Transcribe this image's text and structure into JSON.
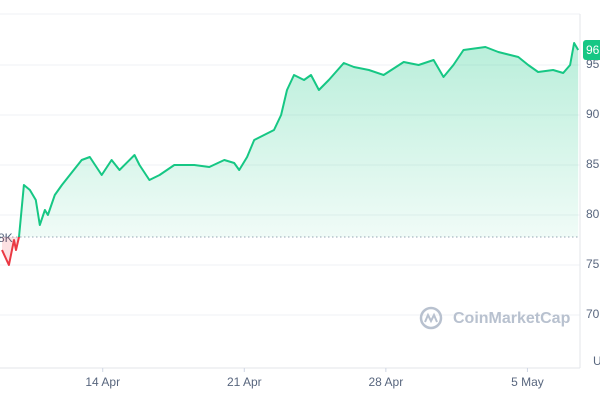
{
  "chart_data": {
    "type": "line",
    "x": [
      99.02,
      99.36,
      99.61,
      99.71,
      99.86,
      100.1,
      100.4,
      100.69,
      100.89,
      101.14,
      101.29,
      101.63,
      101.98,
      102.37,
      102.96,
      103.36,
      103.95,
      104.44,
      104.83,
      105.57,
      105.82,
      106.31,
      106.81,
      107.54,
      108.53,
      109.27,
      110.01,
      110.5,
      110.75,
      111.14,
      111.49,
      111.98,
      112.47,
      112.82,
      113.11,
      113.46,
      113.95,
      114.3,
      114.69,
      115.18,
      115.92,
      116.42,
      117.16,
      117.89,
      118.88,
      119.62,
      120.36,
      120.85,
      121.34,
      121.84,
      122.92,
      123.56,
      124.55,
      125.04,
      125.53,
      126.27,
      126.77,
      127.11,
      127.31,
      127.51
    ],
    "series": [
      {
        "color": "#16c784",
        "values": [
          76.5,
          75.0,
          77.5,
          76.5,
          77.8,
          83.0,
          82.5,
          81.5,
          79.0,
          80.5,
          80.0,
          82.0,
          83.0,
          84.0,
          85.5,
          85.8,
          84.0,
          85.5,
          84.5,
          86.0,
          85.0,
          83.5,
          84.0,
          85.0,
          85.0,
          84.8,
          85.5,
          85.2,
          84.5,
          85.8,
          87.5,
          88.0,
          88.5,
          90.0,
          92.5,
          94.0,
          93.5,
          94.0,
          92.5,
          93.5,
          95.2,
          94.8,
          94.5,
          94.0,
          95.3,
          95.0,
          95.5,
          93.8,
          95.0,
          96.5,
          96.8,
          96.3,
          95.8,
          95.0,
          94.3,
          94.5,
          94.2,
          95.0,
          97.2,
          96.5
        ]
      }
    ],
    "down_color": "#ea3943",
    "baseline": 77.8,
    "baseline_label": "8K",
    "last_label": "96",
    "y_unit_label": "U",
    "watermark": "CoinMarketCap",
    "xlim": [
      98.92,
      127.6
    ],
    "xticks": [
      {
        "value": 104,
        "label": "14 Apr"
      },
      {
        "value": 111,
        "label": "21 Apr"
      },
      {
        "value": 118,
        "label": "28 Apr"
      },
      {
        "value": 125,
        "label": "5 May"
      }
    ],
    "ylim": [
      64.7,
      101.5
    ],
    "yticks": [
      70,
      75,
      80,
      85,
      90,
      95
    ],
    "grid": true
  }
}
